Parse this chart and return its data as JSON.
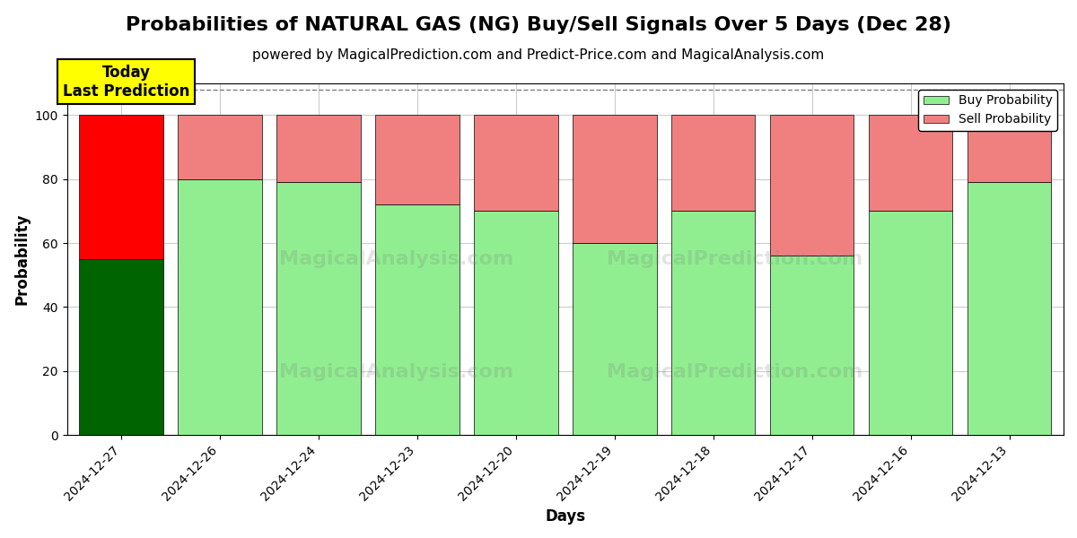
{
  "title": "Probabilities of NATURAL GAS (NG) Buy/Sell Signals Over 5 Days (Dec 28)",
  "subtitle": "powered by MagicalPrediction.com and Predict-Price.com and MagicalAnalysis.com",
  "xlabel": "Days",
  "ylabel": "Probability",
  "dates": [
    "2024-12-27",
    "2024-12-26",
    "2024-12-24",
    "2024-12-23",
    "2024-12-20",
    "2024-12-19",
    "2024-12-18",
    "2024-12-17",
    "2024-12-16",
    "2024-12-13"
  ],
  "buy_values": [
    55,
    80,
    79,
    72,
    70,
    60,
    70,
    56,
    70,
    79
  ],
  "sell_values": [
    45,
    20,
    21,
    28,
    30,
    40,
    30,
    44,
    30,
    21
  ],
  "today_buy_color": "#006400",
  "today_sell_color": "#FF0000",
  "buy_color": "#90EE90",
  "sell_color": "#F08080",
  "today_label": "Today\nLast Prediction",
  "today_label_bg": "#FFFF00",
  "legend_buy": "Buy Probability",
  "legend_sell": "Sell Probability",
  "ylim": [
    0,
    110
  ],
  "yticks": [
    0,
    20,
    40,
    60,
    80,
    100
  ],
  "dashed_line_y": 108,
  "watermark1": "MagicalAnalysis.com",
  "watermark2": "MagicalPrediction.com",
  "bg_color": "#ffffff",
  "grid_color": "#cccccc",
  "title_fontsize": 16,
  "subtitle_fontsize": 11,
  "bar_width": 0.85
}
